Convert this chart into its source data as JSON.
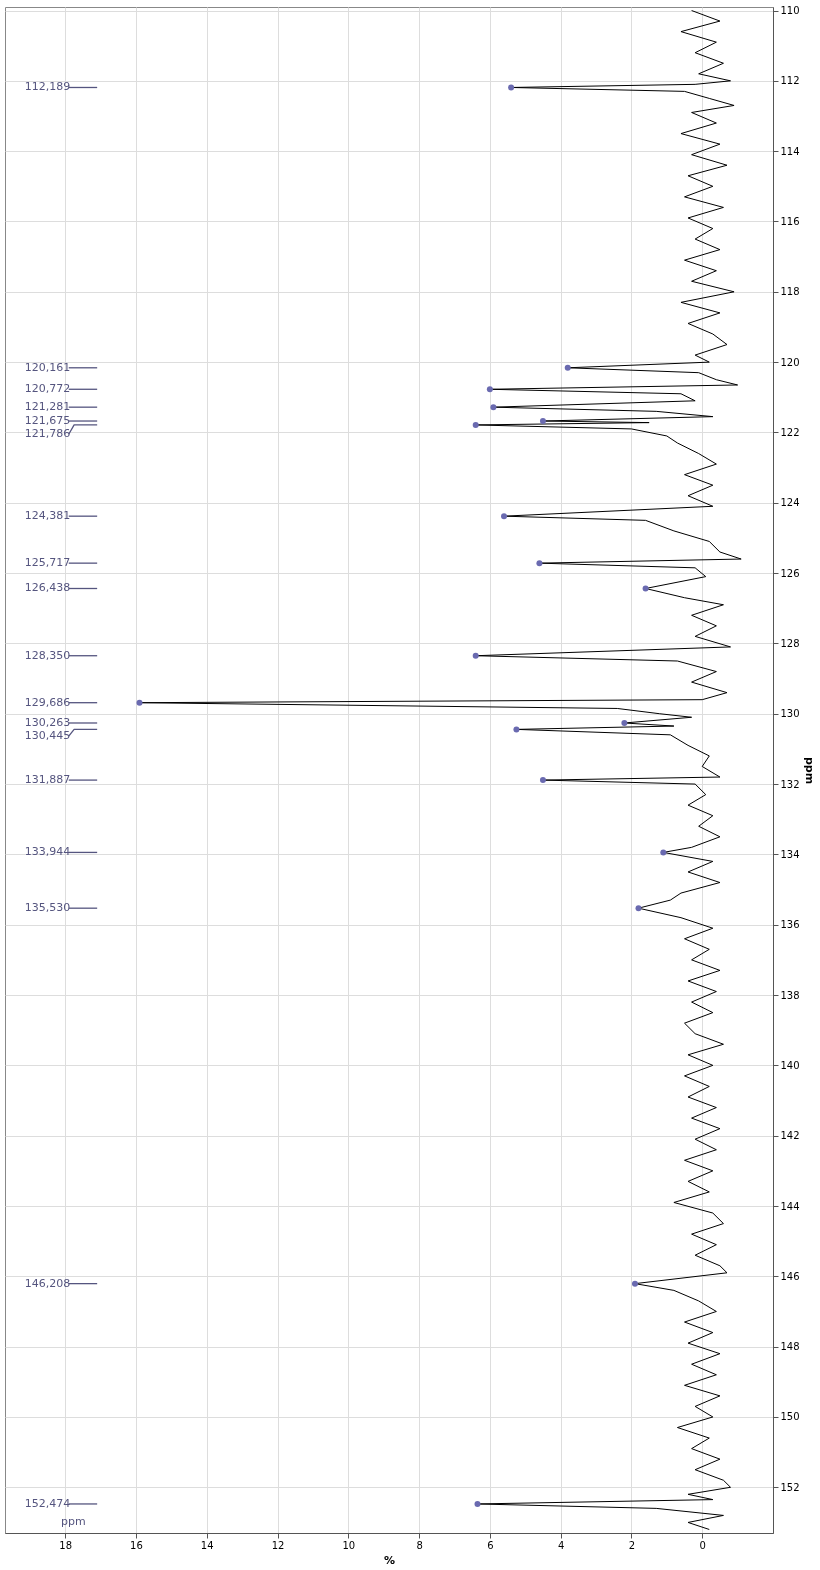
{
  "chart_data": {
    "type": "line",
    "orientation": "horizontal",
    "xlabel": "%",
    "ylabel": "ppm",
    "xlim": [
      19.7,
      -2
    ],
    "xticks": [
      18,
      16,
      14,
      12,
      10,
      8,
      6,
      4,
      2,
      0
    ],
    "ylim": [
      153.3,
      109.9
    ],
    "yticks": [
      110,
      112,
      114,
      116,
      118,
      120,
      122,
      124,
      126,
      128,
      130,
      132,
      134,
      136,
      138,
      140,
      142,
      144,
      146,
      148,
      150,
      152
    ],
    "grid": true,
    "marker": "none",
    "line_style": "solid",
    "annotations": [
      "112,189",
      "120,161",
      "120,772",
      "121,281",
      "121,675",
      "121,786",
      "124,381",
      "125,717",
      "126,438",
      "128,350",
      "129,686",
      "130,263",
      "130,445",
      "131,887",
      "133,944",
      "135,530",
      "146,208",
      "152,474",
      "ppm"
    ],
    "series": [
      {
        "type": "scatter",
        "color": "#6a6ab0",
        "x": [
          112.189,
          120.161,
          120.772,
          121.281,
          121.675,
          121.786,
          124.381,
          125.717,
          126.438,
          128.35,
          129.686,
          130.263,
          130.445,
          131.887,
          133.944,
          135.53,
          146.208,
          152.474
        ],
        "values": [
          5.4,
          3.8,
          6.0,
          5.9,
          4.5,
          6.4,
          5.6,
          4.6,
          1.6,
          6.4,
          15.9,
          2.2,
          5.25,
          4.5,
          1.1,
          1.8,
          1.9,
          6.35
        ]
      },
      {
        "color": "#000000",
        "x": [
          110.0,
          110.3,
          110.6,
          110.9,
          111.2,
          111.5,
          111.8,
          112.0,
          112.1,
          112.189,
          112.3,
          112.5,
          112.7,
          112.9,
          113.2,
          113.5,
          113.8,
          114.1,
          114.4,
          114.7,
          115.0,
          115.3,
          115.6,
          115.9,
          116.2,
          116.5,
          116.8,
          117.1,
          117.4,
          117.7,
          118.0,
          118.3,
          118.6,
          118.9,
          119.2,
          119.5,
          119.8,
          120.0,
          120.161,
          120.3,
          120.5,
          120.65,
          120.772,
          120.9,
          121.1,
          121.281,
          121.4,
          121.55,
          121.675,
          121.72,
          121.786,
          121.9,
          122.1,
          122.3,
          122.6,
          122.9,
          123.2,
          123.5,
          123.8,
          124.1,
          124.381,
          124.5,
          124.8,
          125.1,
          125.4,
          125.6,
          125.717,
          125.85,
          126.1,
          126.438,
          126.7,
          126.9,
          127.2,
          127.5,
          127.8,
          128.1,
          128.35,
          128.5,
          128.8,
          129.1,
          129.4,
          129.6,
          129.686,
          129.85,
          130.0,
          130.1,
          130.263,
          130.35,
          130.445,
          130.6,
          130.9,
          131.2,
          131.5,
          131.8,
          131.887,
          132.0,
          132.3,
          132.6,
          132.9,
          133.2,
          133.5,
          133.8,
          133.944,
          134.2,
          134.5,
          134.8,
          135.1,
          135.3,
          135.53,
          135.8,
          136.1,
          136.4,
          136.7,
          137.0,
          137.3,
          137.6,
          137.9,
          138.2,
          138.5,
          138.8,
          139.1,
          139.4,
          139.7,
          140.0,
          140.3,
          140.6,
          140.9,
          141.2,
          141.5,
          141.8,
          142.1,
          142.4,
          142.7,
          143.0,
          143.3,
          143.6,
          143.9,
          144.2,
          144.5,
          144.8,
          145.1,
          145.4,
          145.7,
          145.9,
          146.208,
          146.4,
          146.7,
          147.0,
          147.3,
          147.6,
          147.9,
          148.2,
          148.5,
          148.8,
          149.1,
          149.4,
          149.7,
          150.0,
          150.3,
          150.6,
          150.9,
          151.2,
          151.5,
          151.8,
          152.0,
          152.2,
          152.35,
          152.474,
          152.6,
          152.8,
          153.0,
          153.2
        ],
        "values": [
          0.3,
          -0.5,
          0.6,
          -0.4,
          0.2,
          -0.6,
          0.1,
          -0.8,
          0.2,
          5.4,
          0.5,
          -0.2,
          -0.9,
          0.3,
          -0.4,
          0.6,
          -0.5,
          0.3,
          -0.7,
          0.4,
          -0.3,
          0.5,
          -0.6,
          0.4,
          -0.3,
          0.2,
          -0.5,
          0.5,
          -0.4,
          0.3,
          -0.9,
          0.6,
          -0.5,
          0.4,
          -0.3,
          -0.7,
          0.2,
          -0.2,
          3.8,
          0.1,
          -0.4,
          -1.0,
          6.0,
          0.6,
          0.2,
          5.9,
          1.3,
          -0.3,
          4.5,
          1.5,
          6.4,
          2.0,
          1.0,
          0.7,
          0.1,
          -0.4,
          0.5,
          -0.3,
          0.4,
          -0.3,
          5.6,
          1.6,
          0.8,
          -0.2,
          -0.5,
          -1.1,
          4.6,
          0.2,
          -0.1,
          1.6,
          0.5,
          -0.6,
          0.3,
          -0.4,
          0.2,
          -0.8,
          6.4,
          0.7,
          -0.4,
          0.3,
          -0.7,
          0.0,
          15.9,
          2.4,
          1.2,
          0.3,
          2.2,
          0.8,
          5.25,
          0.9,
          0.4,
          -0.2,
          0.0,
          -0.5,
          4.5,
          0.2,
          -0.1,
          0.4,
          -0.3,
          0.1,
          -0.5,
          0.3,
          1.1,
          -0.3,
          0.4,
          -0.5,
          0.6,
          0.9,
          1.8,
          0.6,
          -0.3,
          0.5,
          -0.2,
          0.3,
          -0.5,
          0.4,
          -0.4,
          0.3,
          -0.3,
          0.5,
          0.2,
          -0.6,
          0.4,
          -0.3,
          0.5,
          -0.2,
          0.4,
          -0.4,
          0.3,
          -0.5,
          0.2,
          -0.4,
          0.5,
          -0.3,
          0.4,
          -0.2,
          0.8,
          -0.3,
          -0.6,
          0.3,
          -0.4,
          0.2,
          -0.5,
          -0.7,
          1.9,
          0.8,
          0.1,
          -0.4,
          0.5,
          -0.3,
          0.4,
          -0.5,
          0.3,
          -0.4,
          0.5,
          -0.5,
          0.2,
          -0.3,
          0.7,
          -0.2,
          0.3,
          -0.5,
          0.2,
          -0.6,
          -0.8,
          0.4,
          -0.3,
          6.35,
          1.3,
          -0.6,
          0.4,
          -0.2
        ]
      }
    ]
  }
}
